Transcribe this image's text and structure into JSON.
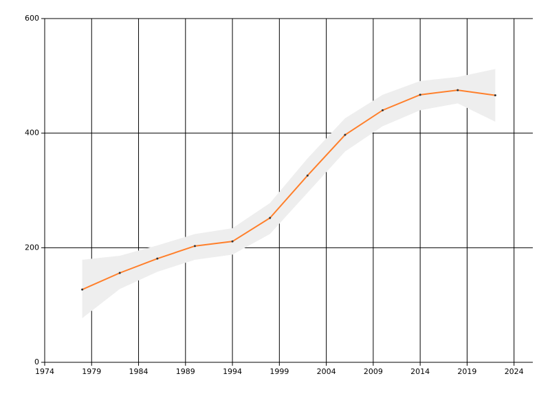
{
  "chart_data": {
    "type": "line",
    "x": [
      1978,
      1982,
      1986,
      1990,
      1994,
      1998,
      2002,
      2006,
      2010,
      2014,
      2018,
      2022
    ],
    "values": [
      127,
      156,
      181,
      203,
      211,
      252,
      326,
      397,
      440,
      467,
      475,
      466
    ],
    "band": {
      "upper": [
        179,
        186,
        204,
        224,
        234,
        278,
        356,
        426,
        467,
        491,
        498,
        512
      ],
      "lower": [
        77,
        128,
        158,
        179,
        188,
        224,
        296,
        368,
        412,
        440,
        452,
        420
      ],
      "color": "#eeeeee"
    },
    "color": "#ff7f2a",
    "point_color": "#333333",
    "xlim": [
      1974,
      2026
    ],
    "xticks": [
      1974,
      1979,
      1984,
      1989,
      1994,
      1999,
      2004,
      2009,
      2014,
      2019,
      2024
    ],
    "ylim": [
      0,
      600
    ],
    "yticks": [
      0,
      200,
      400,
      600
    ],
    "grid": true
  }
}
